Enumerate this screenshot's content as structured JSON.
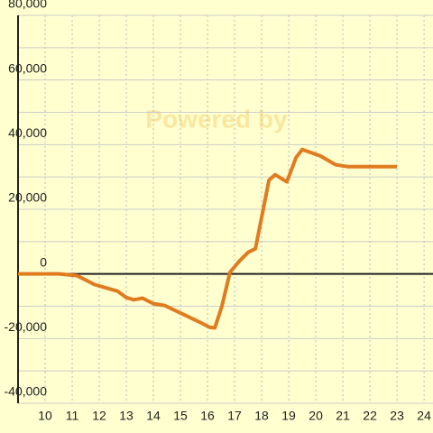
{
  "chart_data": {
    "type": "line",
    "watermark": "Powered by",
    "x": [
      9,
      10.5,
      11.17,
      11.83,
      12.33,
      12.67,
      13,
      13.27,
      13.6,
      14,
      14.43,
      14.83,
      15.33,
      15.73,
      16.07,
      16.27,
      16.53,
      16.83,
      17.17,
      17.5,
      17.77,
      18.27,
      18.5,
      18.93,
      19.27,
      19.5,
      20.17,
      20.73,
      21.17,
      23
    ],
    "values": [
      0,
      0,
      -500,
      -3300,
      -4500,
      -5300,
      -7300,
      -8000,
      -7500,
      -9200,
      -9800,
      -11400,
      -13400,
      -15000,
      -16500,
      -16700,
      -10000,
      500,
      3900,
      6700,
      7800,
      29000,
      30700,
      28500,
      36000,
      38500,
      36500,
      33800,
      33200,
      33200
    ],
    "color": "#e07b20",
    "xlim": [
      9,
      24.33
    ],
    "xticks": [
      10,
      11,
      12,
      13,
      14,
      15,
      16,
      17,
      18,
      19,
      20,
      21,
      22,
      23,
      24
    ],
    "ylim": [
      -40000,
      80000
    ],
    "yticks": [
      {
        "value": -40000,
        "label": "-40,000"
      },
      {
        "value": -20000,
        "label": "-20,000"
      },
      0,
      {
        "value": 20000,
        "label": "20,000"
      },
      {
        "value": 40000,
        "label": "40,000"
      },
      {
        "value": 60000,
        "label": "60,000"
      },
      {
        "value": 80000,
        "label": "80,000"
      }
    ],
    "yminor": [
      -30000,
      -10000,
      10000,
      30000,
      50000,
      70000
    ],
    "grid": true
  }
}
